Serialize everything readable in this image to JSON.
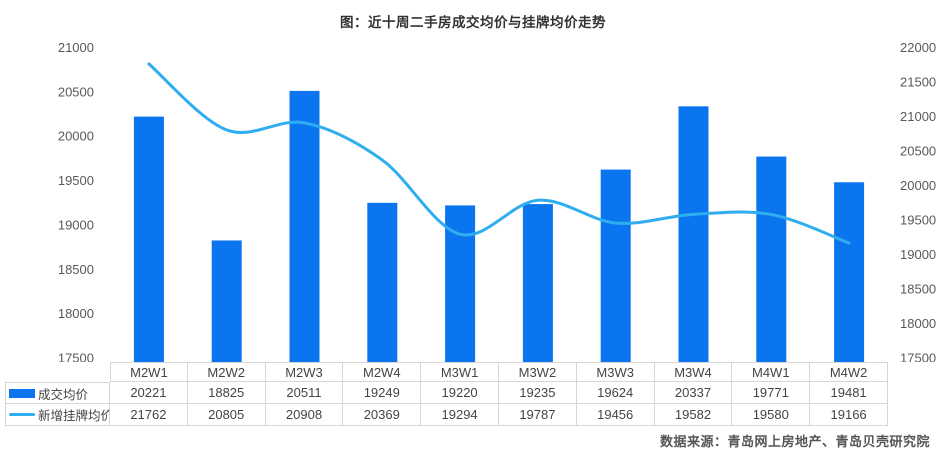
{
  "title": "图：近十周二手房成交均价与挂牌均价走势",
  "source": "数据来源：青岛网上房地产、青岛贝壳研究院",
  "colors": {
    "bar": "#0b75ef",
    "line": "#2faeef",
    "axis_text": "#595959",
    "table_text": "#444444",
    "table_border": "#d6d6d6",
    "title_text": "#333333",
    "source_text": "#555555"
  },
  "chart_data": {
    "type": "bar",
    "subtype": "bar+line dual-axis combo with data table",
    "title": "图：近十周二手房成交均价与挂牌均价走势",
    "categories": [
      "M2W1",
      "M2W2",
      "M2W3",
      "M2W4",
      "M3W1",
      "M3W2",
      "M3W3",
      "M3W4",
      "M4W1",
      "M4W2"
    ],
    "series": [
      {
        "name": "成交均价",
        "type": "bar",
        "axis": "left",
        "values": [
          20221,
          18825,
          20511,
          19249,
          19220,
          19235,
          19624,
          20337,
          19771,
          19481
        ]
      },
      {
        "name": "新增挂牌均价",
        "type": "line",
        "axis": "right",
        "values": [
          21762,
          20805,
          20908,
          20369,
          19294,
          19787,
          19456,
          19582,
          19580,
          19166
        ]
      }
    ],
    "left_axis": {
      "min": 17500,
      "max": 21000,
      "step": 500,
      "ticks": [
        "21000",
        "20500",
        "20000",
        "19500",
        "19000",
        "18500",
        "18000",
        "17500"
      ]
    },
    "right_axis": {
      "min": 17500,
      "max": 22000,
      "step": 500,
      "ticks": [
        "22000",
        "21500",
        "21000",
        "20500",
        "20000",
        "19500",
        "19000",
        "18500",
        "18000",
        "17500"
      ]
    },
    "grid": false,
    "legend_position": "table-left"
  }
}
